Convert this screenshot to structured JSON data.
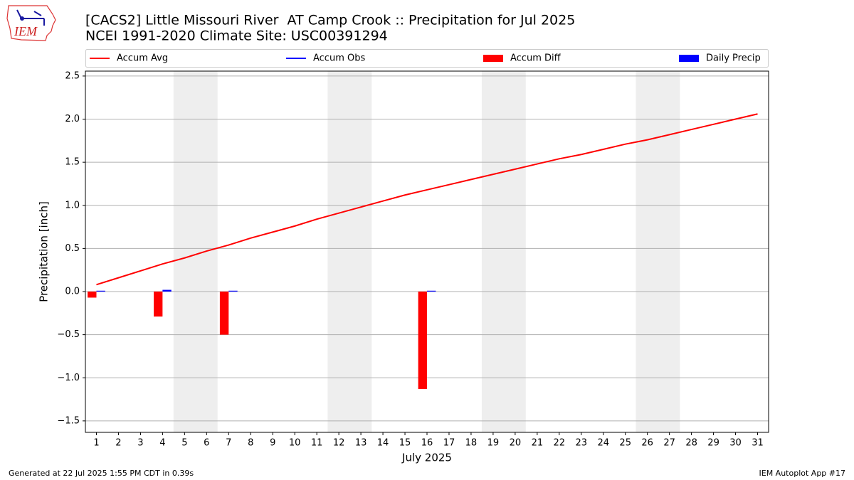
{
  "chart_data": {
    "type": "bar_line",
    "title": "[CACS2] Little Missouri River  AT Camp Crook :: Precipitation for Jul 2025",
    "subtitle": "NCEI 1991-2020 Climate Site: USC00391294",
    "logo_text": "IEM",
    "xlabel": "July 2025",
    "ylabel": "Precipitation [inch]",
    "footer_left": "Generated at 22 Jul 2025 1:55 PM CDT in 0.39s",
    "footer_right": "IEM Autoplot App #17",
    "x": [
      1,
      2,
      3,
      4,
      5,
      6,
      7,
      8,
      9,
      10,
      11,
      12,
      13,
      14,
      15,
      16,
      17,
      18,
      19,
      20,
      21,
      22,
      23,
      24,
      25,
      26,
      27,
      28,
      29,
      30,
      31
    ],
    "xlim": [
      0.5,
      31.5
    ],
    "xticks": [
      1,
      2,
      3,
      4,
      5,
      6,
      7,
      8,
      9,
      10,
      11,
      12,
      13,
      14,
      15,
      16,
      17,
      18,
      19,
      20,
      21,
      22,
      23,
      24,
      25,
      26,
      27,
      28,
      29,
      30,
      31
    ],
    "ylim": [
      -1.633,
      2.557
    ],
    "yticks": [
      {
        "value": -1.5,
        "label": "−1.5"
      },
      {
        "value": -1.0,
        "label": "−1.0"
      },
      {
        "value": -0.5,
        "label": "−0.5"
      },
      {
        "value": 0.0,
        "label": "0.0"
      },
      {
        "value": 0.5,
        "label": "0.5"
      },
      {
        "value": 1.0,
        "label": "1.0"
      },
      {
        "value": 1.5,
        "label": "1.5"
      },
      {
        "value": 2.0,
        "label": "2.0"
      },
      {
        "value": 2.5,
        "label": "2.5"
      }
    ],
    "grid": true,
    "series": [
      {
        "name": "Accum Avg",
        "kind": "line",
        "color": "#ff0000",
        "values": [
          0.08,
          0.16,
          0.24,
          0.32,
          0.39,
          0.47,
          0.54,
          0.62,
          0.69,
          0.76,
          0.84,
          0.91,
          0.98,
          1.05,
          1.12,
          1.18,
          1.24,
          1.3,
          1.36,
          1.42,
          1.48,
          1.54,
          1.59,
          1.65,
          1.71,
          1.76,
          1.82,
          1.88,
          1.94,
          2.0,
          2.06
        ]
      },
      {
        "name": "Accum Obs",
        "kind": "line",
        "color": "#0000ff",
        "values": [
          null,
          null,
          null,
          null,
          null,
          null,
          null,
          null,
          null,
          null,
          null,
          null,
          null,
          null,
          null,
          null,
          null,
          null,
          null,
          null,
          null,
          null,
          null,
          null,
          null,
          null,
          null,
          null,
          null,
          null,
          null
        ]
      },
      {
        "name": "Accum Diff",
        "kind": "bar_left",
        "color": "#ff0000",
        "values": [
          -0.07,
          null,
          null,
          -0.29,
          null,
          null,
          -0.5,
          null,
          null,
          null,
          null,
          null,
          null,
          null,
          null,
          -1.13,
          null,
          null,
          null,
          null,
          null,
          null,
          null,
          null,
          null,
          null,
          null,
          null,
          null,
          null,
          null
        ]
      },
      {
        "name": "Daily Precip",
        "kind": "bar_right",
        "color": "#0000ff",
        "values": [
          0.01,
          null,
          null,
          0.02,
          null,
          null,
          0.01,
          null,
          null,
          null,
          null,
          null,
          null,
          null,
          null,
          0.01,
          null,
          null,
          null,
          null,
          null,
          null,
          null,
          null,
          null,
          null,
          null,
          null,
          null,
          null,
          null
        ]
      }
    ]
  }
}
